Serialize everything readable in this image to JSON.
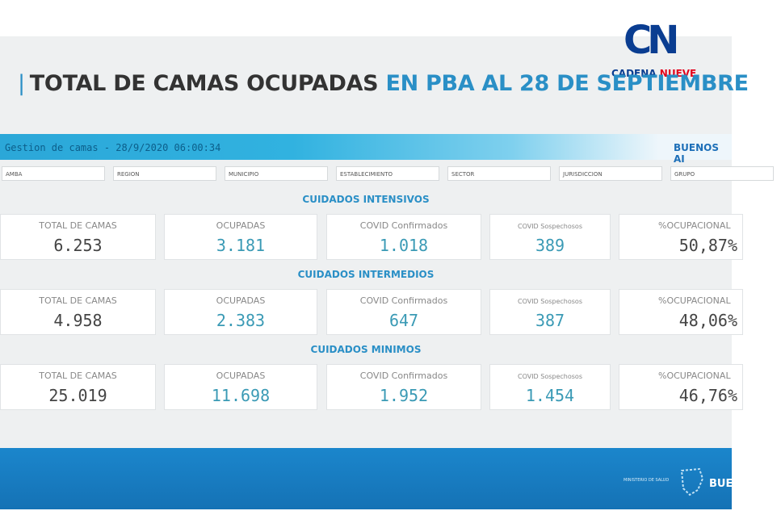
{
  "logo": {
    "mark": "CN",
    "name_part1": "CADENA",
    "name_part2": "NUEVE"
  },
  "title": {
    "part1": "TOTAL DE CAMAS OCUPADAS",
    "part2": "EN PBA AL 28 DE SEPTIEMBRE"
  },
  "dashboard": {
    "header": "Gestion de camas - 28/9/2020 06:00:34",
    "brand": "BUENOS AI",
    "filters": [
      "AMBA",
      "REGION",
      "MUNICIPIO",
      "ESTABLECIMIENTO",
      "SECTOR",
      "JURISDICCION",
      "GRUPO"
    ],
    "sections": [
      {
        "name": "CUIDADOS INTENSIVOS",
        "cards": [
          {
            "label": "TOTAL DE CAMAS",
            "value": "6.253"
          },
          {
            "label": "OCUPADAS",
            "value": "3.181"
          },
          {
            "label": "COVID Confirmados",
            "value": "1.018"
          },
          {
            "label": "COVID Sospechosos",
            "value": "389"
          },
          {
            "label": "%OCUPACIONAL",
            "value": "50,87%"
          }
        ]
      },
      {
        "name": "CUIDADOS INTERMEDIOS",
        "cards": [
          {
            "label": "TOTAL DE CAMAS",
            "value": "4.958"
          },
          {
            "label": "OCUPADAS",
            "value": "2.383"
          },
          {
            "label": "COVID Confirmados",
            "value": "647"
          },
          {
            "label": "COVID Sospechosos",
            "value": "387"
          },
          {
            "label": "%OCUPACIONAL",
            "value": "48,06%"
          }
        ]
      },
      {
        "name": "CUIDADOS MINIMOS",
        "cards": [
          {
            "label": "TOTAL DE CAMAS",
            "value": "25.019"
          },
          {
            "label": "OCUPADAS",
            "value": "11.698"
          },
          {
            "label": "COVID Confirmados",
            "value": "1.952"
          },
          {
            "label": "COVID Sospechosos",
            "value": "1.454"
          },
          {
            "label": "%OCUPACIONAL",
            "value": "46,76%"
          }
        ]
      }
    ]
  },
  "footer": {
    "ministry": "MINISTERIO DE SALUD",
    "brand": "BUE"
  }
}
